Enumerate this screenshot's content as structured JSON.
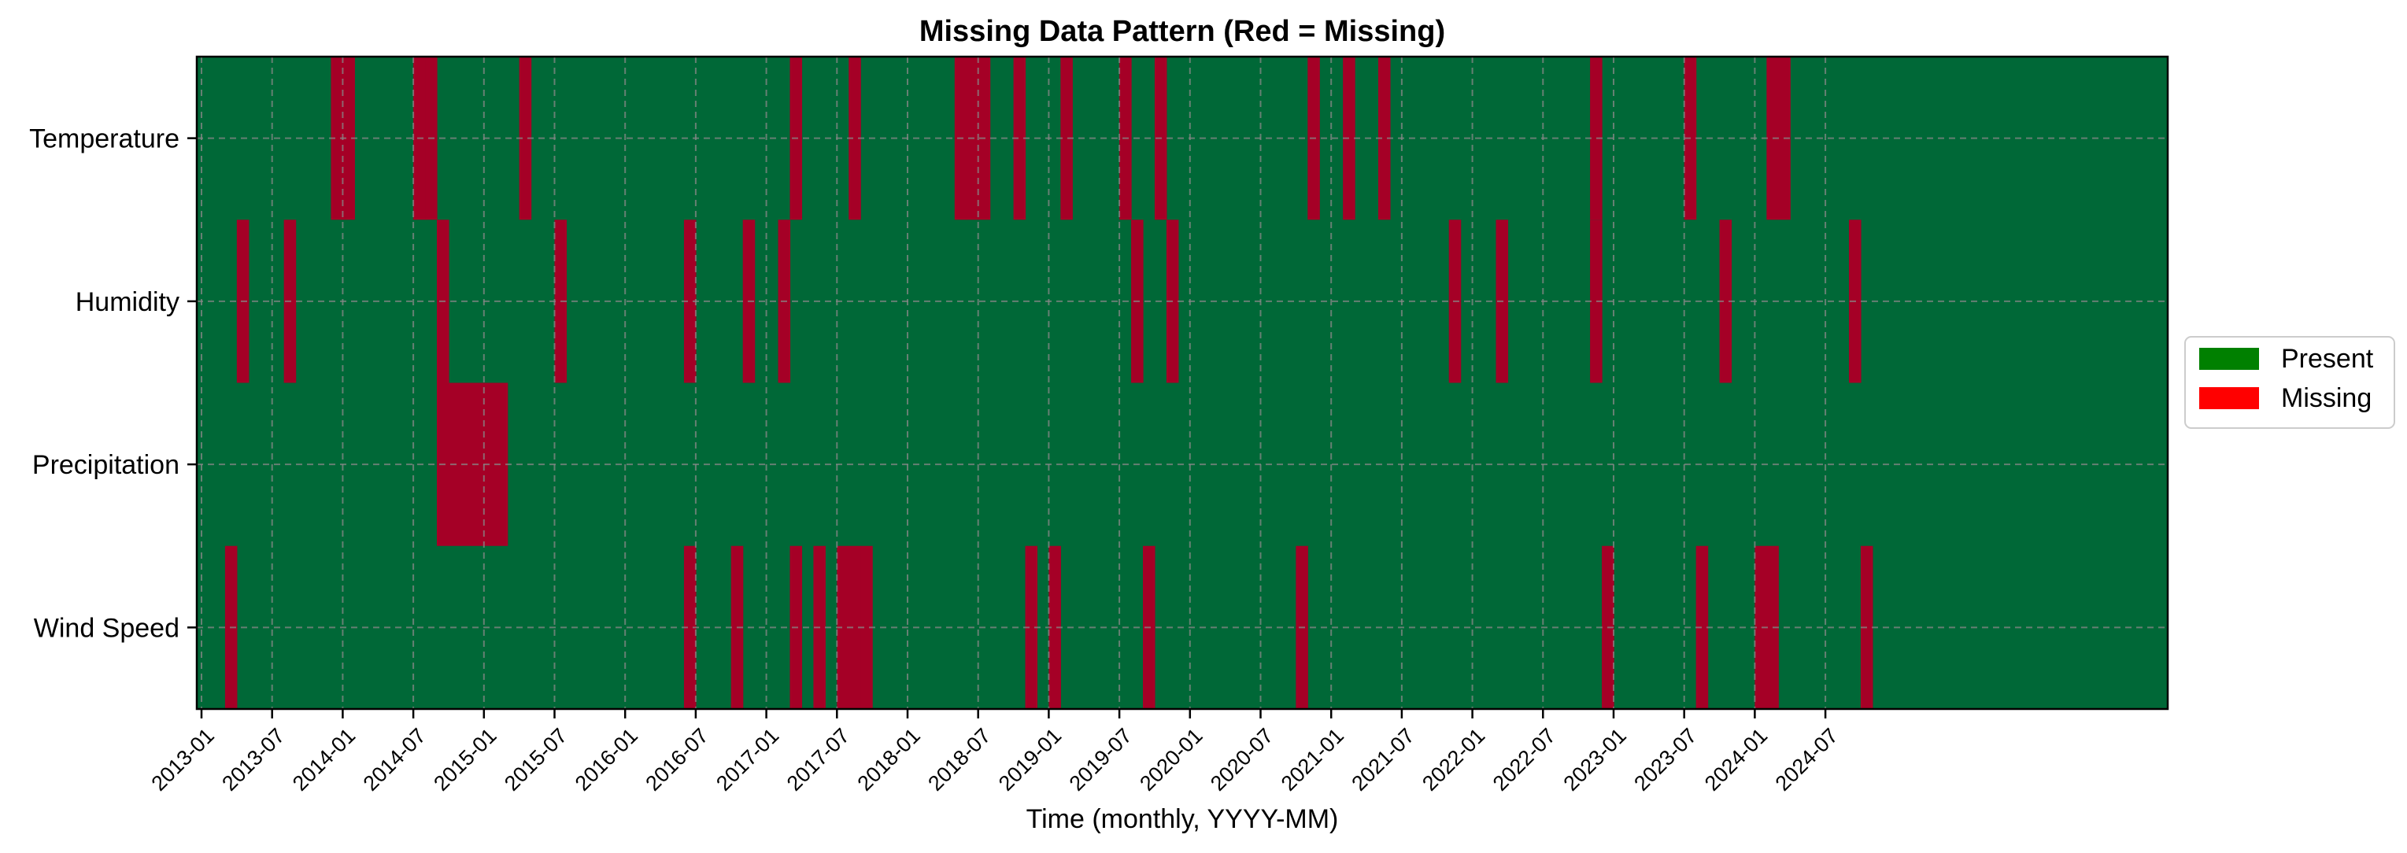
{
  "chart_data": {
    "type": "heatmap",
    "title": "Missing Data Pattern (Red = Missing)",
    "xlabel": "Time (monthly, YYYY-MM)",
    "ylabel": "",
    "x_start": "2013-01",
    "x_end": "2024-12",
    "x_ticks": [
      "2013-01",
      "2013-07",
      "2014-01",
      "2014-07",
      "2015-01",
      "2015-07",
      "2016-01",
      "2016-07",
      "2017-01",
      "2017-07",
      "2018-01",
      "2018-07",
      "2019-01",
      "2019-07",
      "2020-01",
      "2020-07",
      "2021-01",
      "2021-07",
      "2022-01",
      "2022-07",
      "2023-01",
      "2023-07",
      "2024-01",
      "2024-07"
    ],
    "categories": [
      "Temperature",
      "Humidity",
      "Precipitation",
      "Wind Speed"
    ],
    "grid": true,
    "legend_position": "right",
    "legend": [
      {
        "label": "Present",
        "color": "#008000"
      },
      {
        "label": "Missing",
        "color": "#ff0000"
      }
    ],
    "cell_colors": {
      "present": "#006837",
      "missing": "#a50026"
    },
    "series": [
      {
        "name": "Temperature",
        "missing_months": [
          "2013-12",
          "2013-13",
          "2014-07",
          "2014-08",
          "2015-04",
          "2017-03",
          "2017-08",
          "2018-05",
          "2018-06",
          "2018-07",
          "2018-10",
          "2019-02",
          "2019-07",
          "2019-10",
          "2020-11",
          "2021-02",
          "2021-05",
          "2022-11",
          "2023-07",
          "2023-14",
          "2023-15"
        ]
      },
      {
        "name": "Humidity",
        "missing_months": [
          "2013-04",
          "2013-08",
          "2014-09",
          "2015-07",
          "2016-06",
          "2016-11",
          "2017-02",
          "2019-08",
          "2019-11",
          "2021-11",
          "2022-03",
          "2022-11",
          "2023-10",
          "2024-09"
        ]
      },
      {
        "name": "Precipitation",
        "missing_months": [
          "2014-09",
          "2014-10",
          "2014-11",
          "2014-12",
          "2015-01",
          "2015-02"
        ]
      },
      {
        "name": "Wind Speed",
        "missing_months": [
          "2013-03",
          "2016-06",
          "2016-10",
          "2017-03",
          "2017-05",
          "2017-07",
          "2017-08",
          "2017-09",
          "2018-11",
          "2019-01",
          "2019-09",
          "2020-10",
          "2022-12",
          "2023-08",
          "2023-13",
          "2024-02",
          "2024-10"
        ]
      }
    ]
  }
}
